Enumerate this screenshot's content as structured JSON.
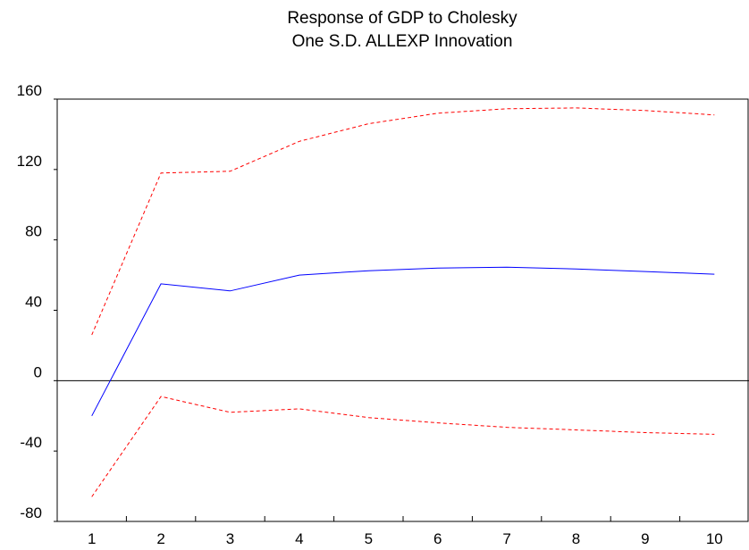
{
  "chart_data": {
    "type": "line",
    "title": [
      "Response of GDP to Cholesky",
      "One S.D. ALLEXP Innovation"
    ],
    "xlabel": "",
    "ylabel": "",
    "x": [
      1,
      2,
      3,
      4,
      5,
      6,
      7,
      8,
      9,
      10
    ],
    "ylim": [
      -80,
      160
    ],
    "yticks": [
      -80,
      -40,
      0,
      40,
      80,
      120,
      160
    ],
    "grid": false,
    "legend": "none",
    "series": [
      {
        "role": "upper",
        "color": "#ff0000",
        "dash": true,
        "values": [
          26,
          118,
          119,
          136,
          146,
          152,
          154.5,
          155,
          153.5,
          151
        ]
      },
      {
        "role": "response",
        "color": "#0000ff",
        "dash": false,
        "values": [
          -20,
          55,
          51,
          60,
          62.5,
          64,
          64.5,
          63.5,
          62,
          60.5
        ]
      },
      {
        "role": "lower",
        "color": "#ff0000",
        "dash": true,
        "values": [
          -66,
          -9,
          -18,
          -16,
          -21,
          -24,
          -26.5,
          -28,
          -29.5,
          -30.5
        ]
      }
    ],
    "zero_line": true
  }
}
